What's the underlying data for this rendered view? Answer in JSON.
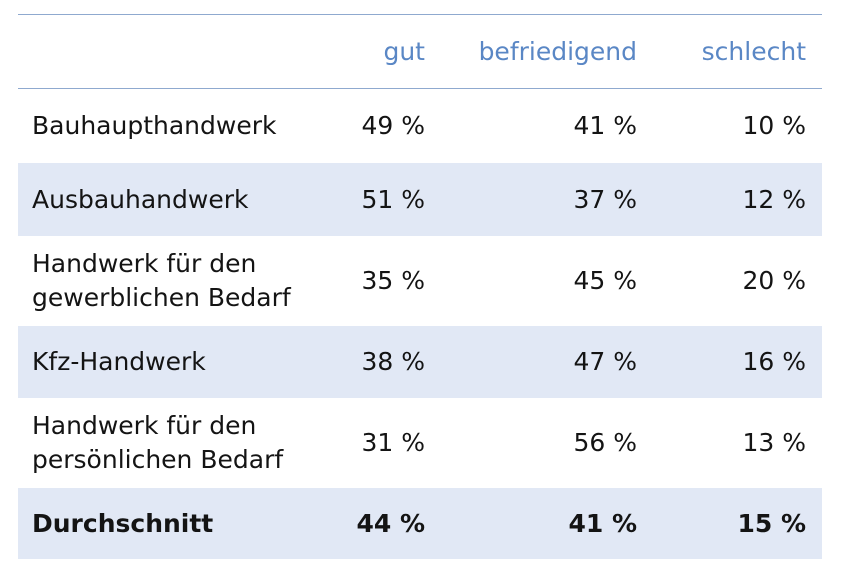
{
  "chart_data": {
    "type": "table",
    "columns": [
      "",
      "gut",
      "befriedigend",
      "schlecht"
    ],
    "rows": [
      {
        "label_lines": [
          "Bauhaupthandwerk"
        ],
        "gut": "49 %",
        "befriedigend": "41 %",
        "schlecht": "10 %"
      },
      {
        "label_lines": [
          "Ausbauhandwerk"
        ],
        "gut": "51 %",
        "befriedigend": "37 %",
        "schlecht": "12 %"
      },
      {
        "label_lines": [
          "Handwerk für den",
          "gewerblichen Bedarf"
        ],
        "gut": "35 %",
        "befriedigend": "45 %",
        "schlecht": "20 %"
      },
      {
        "label_lines": [
          "Kfz-Handwerk"
        ],
        "gut": "38 %",
        "befriedigend": "47 %",
        "schlecht": "16 %"
      },
      {
        "label_lines": [
          "Handwerk für den",
          "persönlichen Bedarf"
        ],
        "gut": "31 %",
        "befriedigend": "56 %",
        "schlecht": "13 %"
      },
      {
        "label_lines": [
          "Durchschnitt"
        ],
        "gut": "44 %",
        "befriedigend": "41 %",
        "schlecht": "15 %",
        "emphasis": true
      }
    ]
  },
  "colors": {
    "header_text": "#5a87c5",
    "rule": "#8fa9cf",
    "row_shade": "#e1e8f5",
    "body_text": "#141414"
  }
}
